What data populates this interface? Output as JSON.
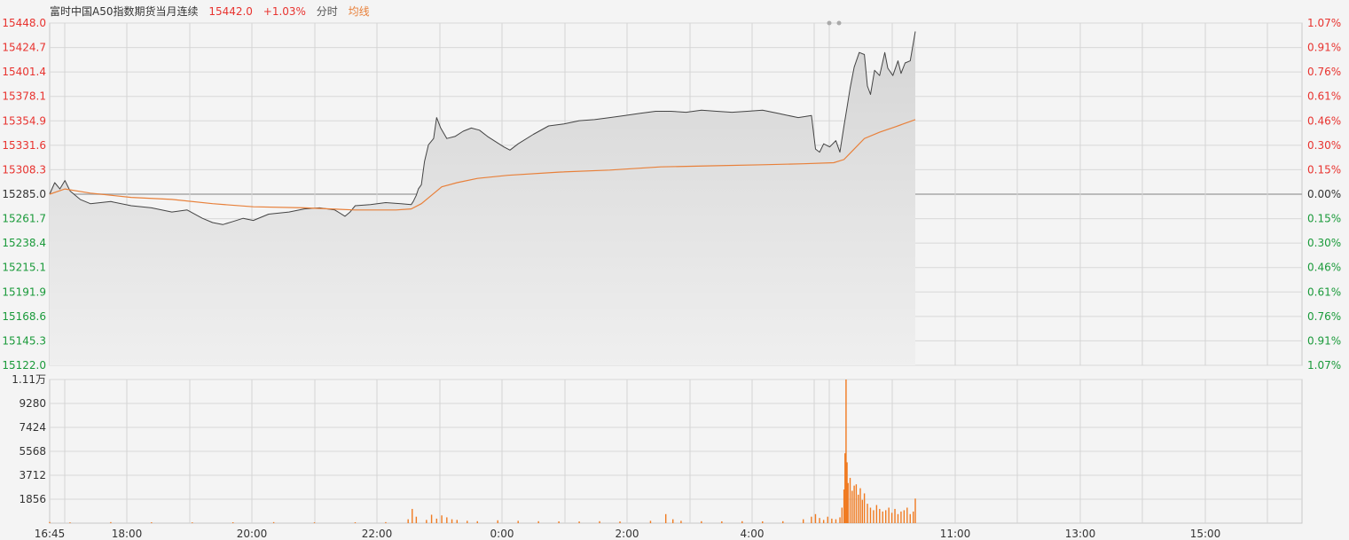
{
  "header": {
    "title": "富时中国A50指数期货当月连续",
    "price": "15442.0",
    "change": "+1.03%",
    "mode": "分时",
    "avg_label": "均线"
  },
  "colors": {
    "up": "#e8332f",
    "down": "#1a9a3a",
    "price_line": "#444444",
    "avg_line": "#e8803a",
    "volume": "#f07a20",
    "grid": "#c8c8c8",
    "area": "#d5d5d5"
  },
  "chart_data": [
    {
      "type": "line",
      "title": "富时中国A50指数期货当月连续",
      "prev_close": 15285.0,
      "ylim": [
        15122.0,
        15448.0
      ],
      "y_ticks_left": [
        "15448.0",
        "15424.7",
        "15401.4",
        "15378.1",
        "15354.9",
        "15331.6",
        "15308.3",
        "15285.0",
        "15261.7",
        "15238.4",
        "15215.1",
        "15191.9",
        "15168.6",
        "15145.3",
        "15122.0"
      ],
      "y_ticks_right": [
        "1.07%",
        "0.91%",
        "0.76%",
        "0.61%",
        "0.46%",
        "0.30%",
        "0.15%",
        "0.00%",
        "0.15%",
        "0.30%",
        "0.46%",
        "0.61%",
        "0.76%",
        "0.91%",
        "1.07%"
      ],
      "x_ticks": [
        "16:45",
        "18:00",
        "20:00",
        "22:00",
        "0:00",
        "2:00",
        "4:00",
        "11:00",
        "13:00",
        "15:00"
      ],
      "series": [
        {
          "name": "价格",
          "points": [
            [
              0,
              15285
            ],
            [
              5,
              15296
            ],
            [
              10,
              15290
            ],
            [
              15,
              15298
            ],
            [
              20,
              15288
            ],
            [
              30,
              15280
            ],
            [
              40,
              15276
            ],
            [
              60,
              15278
            ],
            [
              80,
              15274
            ],
            [
              100,
              15272
            ],
            [
              120,
              15268
            ],
            [
              135,
              15270
            ],
            [
              150,
              15262
            ],
            [
              160,
              15258
            ],
            [
              170,
              15256
            ],
            [
              180,
              15259
            ],
            [
              190,
              15262
            ],
            [
              200,
              15260
            ],
            [
              215,
              15266
            ],
            [
              235,
              15268
            ],
            [
              250,
              15271
            ],
            [
              265,
              15272
            ],
            [
              280,
              15270
            ],
            [
              290,
              15264
            ],
            [
              295,
              15268
            ],
            [
              300,
              15274
            ],
            [
              315,
              15275
            ],
            [
              330,
              15277
            ],
            [
              345,
              15276
            ],
            [
              355,
              15275
            ],
            [
              357,
              15278
            ],
            [
              360,
              15284
            ],
            [
              362,
              15290
            ],
            [
              365,
              15294
            ],
            [
              368,
              15316
            ],
            [
              372,
              15332
            ],
            [
              377,
              15338
            ],
            [
              380,
              15358
            ],
            [
              384,
              15348
            ],
            [
              390,
              15338
            ],
            [
              398,
              15340
            ],
            [
              406,
              15345
            ],
            [
              414,
              15348
            ],
            [
              422,
              15346
            ],
            [
              430,
              15340
            ],
            [
              438,
              15335
            ],
            [
              446,
              15330
            ],
            [
              452,
              15327
            ],
            [
              460,
              15333
            ],
            [
              475,
              15342
            ],
            [
              490,
              15350
            ],
            [
              505,
              15352
            ],
            [
              520,
              15355
            ],
            [
              535,
              15356
            ],
            [
              550,
              15358
            ],
            [
              565,
              15360
            ],
            [
              580,
              15362
            ],
            [
              595,
              15364
            ],
            [
              610,
              15364
            ],
            [
              625,
              15363
            ],
            [
              640,
              15365
            ],
            [
              655,
              15364
            ],
            [
              670,
              15363
            ],
            [
              685,
              15364
            ],
            [
              700,
              15365
            ],
            [
              715,
              15362
            ],
            [
              725,
              15360
            ],
            [
              735,
              15358
            ],
            [
              742,
              15359
            ],
            [
              748,
              15360
            ],
            [
              752,
              15328
            ],
            [
              756,
              15325
            ],
            [
              760,
              15333
            ],
            [
              766,
              15330
            ],
            [
              772,
              15336
            ],
            [
              776,
              15325
            ],
            [
              780,
              15350
            ],
            [
              783,
              15368
            ],
            [
              786,
              15386
            ],
            [
              790,
              15406
            ],
            [
              795,
              15420
            ],
            [
              800,
              15418
            ],
            [
              803,
              15388
            ],
            [
              806,
              15380
            ],
            [
              810,
              15403
            ],
            [
              815,
              15398
            ],
            [
              820,
              15420
            ],
            [
              823,
              15405
            ],
            [
              828,
              15398
            ],
            [
              833,
              15412
            ],
            [
              836,
              15400
            ],
            [
              840,
              15410
            ],
            [
              845,
              15412
            ],
            [
              850,
              15440
            ]
          ]
        },
        {
          "name": "均线",
          "points": [
            [
              0,
              15285
            ],
            [
              15,
              15290
            ],
            [
              40,
              15286
            ],
            [
              80,
              15282
            ],
            [
              120,
              15280
            ],
            [
              160,
              15276
            ],
            [
              200,
              15273
            ],
            [
              250,
              15272
            ],
            [
              300,
              15270
            ],
            [
              340,
              15270
            ],
            [
              355,
              15271
            ],
            [
              365,
              15276
            ],
            [
              375,
              15284
            ],
            [
              385,
              15292
            ],
            [
              400,
              15296
            ],
            [
              420,
              15300
            ],
            [
              450,
              15303
            ],
            [
              500,
              15306
            ],
            [
              550,
              15308
            ],
            [
              600,
              15311
            ],
            [
              650,
              15312
            ],
            [
              700,
              15313
            ],
            [
              740,
              15314
            ],
            [
              770,
              15315
            ],
            [
              780,
              15318
            ],
            [
              790,
              15328
            ],
            [
              800,
              15338
            ],
            [
              815,
              15344
            ],
            [
              830,
              15349
            ],
            [
              850,
              15356
            ]
          ]
        }
      ]
    },
    {
      "type": "bar",
      "title": "",
      "ylim": [
        0,
        11100
      ],
      "y_ticks": [
        "1.11万",
        "9280",
        "7424",
        "5568",
        "3712",
        "1856"
      ],
      "x_ticks": [
        "16:45",
        "18:00",
        "20:00",
        "22:00",
        "0:00",
        "2:00",
        "4:00",
        "11:00",
        "13:00",
        "15:00"
      ],
      "series": [
        {
          "name": "成交量",
          "points": [
            [
              0,
              90
            ],
            [
              20,
              60
            ],
            [
              60,
              80
            ],
            [
              100,
              70
            ],
            [
              140,
              60
            ],
            [
              180,
              70
            ],
            [
              220,
              80
            ],
            [
              260,
              60
            ],
            [
              300,
              70
            ],
            [
              330,
              80
            ],
            [
              352,
              300
            ],
            [
              356,
              1100
            ],
            [
              360,
              500
            ],
            [
              370,
              250
            ],
            [
              375,
              650
            ],
            [
              380,
              350
            ],
            [
              385,
              600
            ],
            [
              390,
              450
            ],
            [
              395,
              300
            ],
            [
              400,
              250
            ],
            [
              410,
              180
            ],
            [
              420,
              150
            ],
            [
              440,
              220
            ],
            [
              460,
              180
            ],
            [
              480,
              150
            ],
            [
              500,
              140
            ],
            [
              520,
              130
            ],
            [
              540,
              150
            ],
            [
              560,
              130
            ],
            [
              590,
              180
            ],
            [
              605,
              700
            ],
            [
              612,
              300
            ],
            [
              620,
              180
            ],
            [
              640,
              150
            ],
            [
              660,
              140
            ],
            [
              680,
              150
            ],
            [
              700,
              140
            ],
            [
              720,
              150
            ],
            [
              740,
              300
            ],
            [
              748,
              500
            ],
            [
              752,
              700
            ],
            [
              756,
              400
            ],
            [
              760,
              250
            ],
            [
              764,
              500
            ],
            [
              768,
              350
            ],
            [
              772,
              300
            ],
            [
              776,
              450
            ],
            [
              778,
              1200
            ],
            [
              780,
              2600
            ],
            [
              781,
              5400
            ],
            [
              782,
              11100
            ],
            [
              783,
              4700
            ],
            [
              784,
              3100
            ],
            [
              786,
              3500
            ],
            [
              788,
              2500
            ],
            [
              790,
              2900
            ],
            [
              792,
              3000
            ],
            [
              794,
              2200
            ],
            [
              796,
              2700
            ],
            [
              798,
              1800
            ],
            [
              800,
              2300
            ],
            [
              803,
              1500
            ],
            [
              806,
              1200
            ],
            [
              809,
              1000
            ],
            [
              812,
              1400
            ],
            [
              815,
              1100
            ],
            [
              818,
              900
            ],
            [
              821,
              1000
            ],
            [
              824,
              1200
            ],
            [
              827,
              800
            ],
            [
              830,
              1100
            ],
            [
              833,
              700
            ],
            [
              836,
              900
            ],
            [
              839,
              1000
            ],
            [
              842,
              1200
            ],
            [
              845,
              700
            ],
            [
              848,
              900
            ],
            [
              850,
              1900
            ]
          ]
        }
      ]
    }
  ]
}
